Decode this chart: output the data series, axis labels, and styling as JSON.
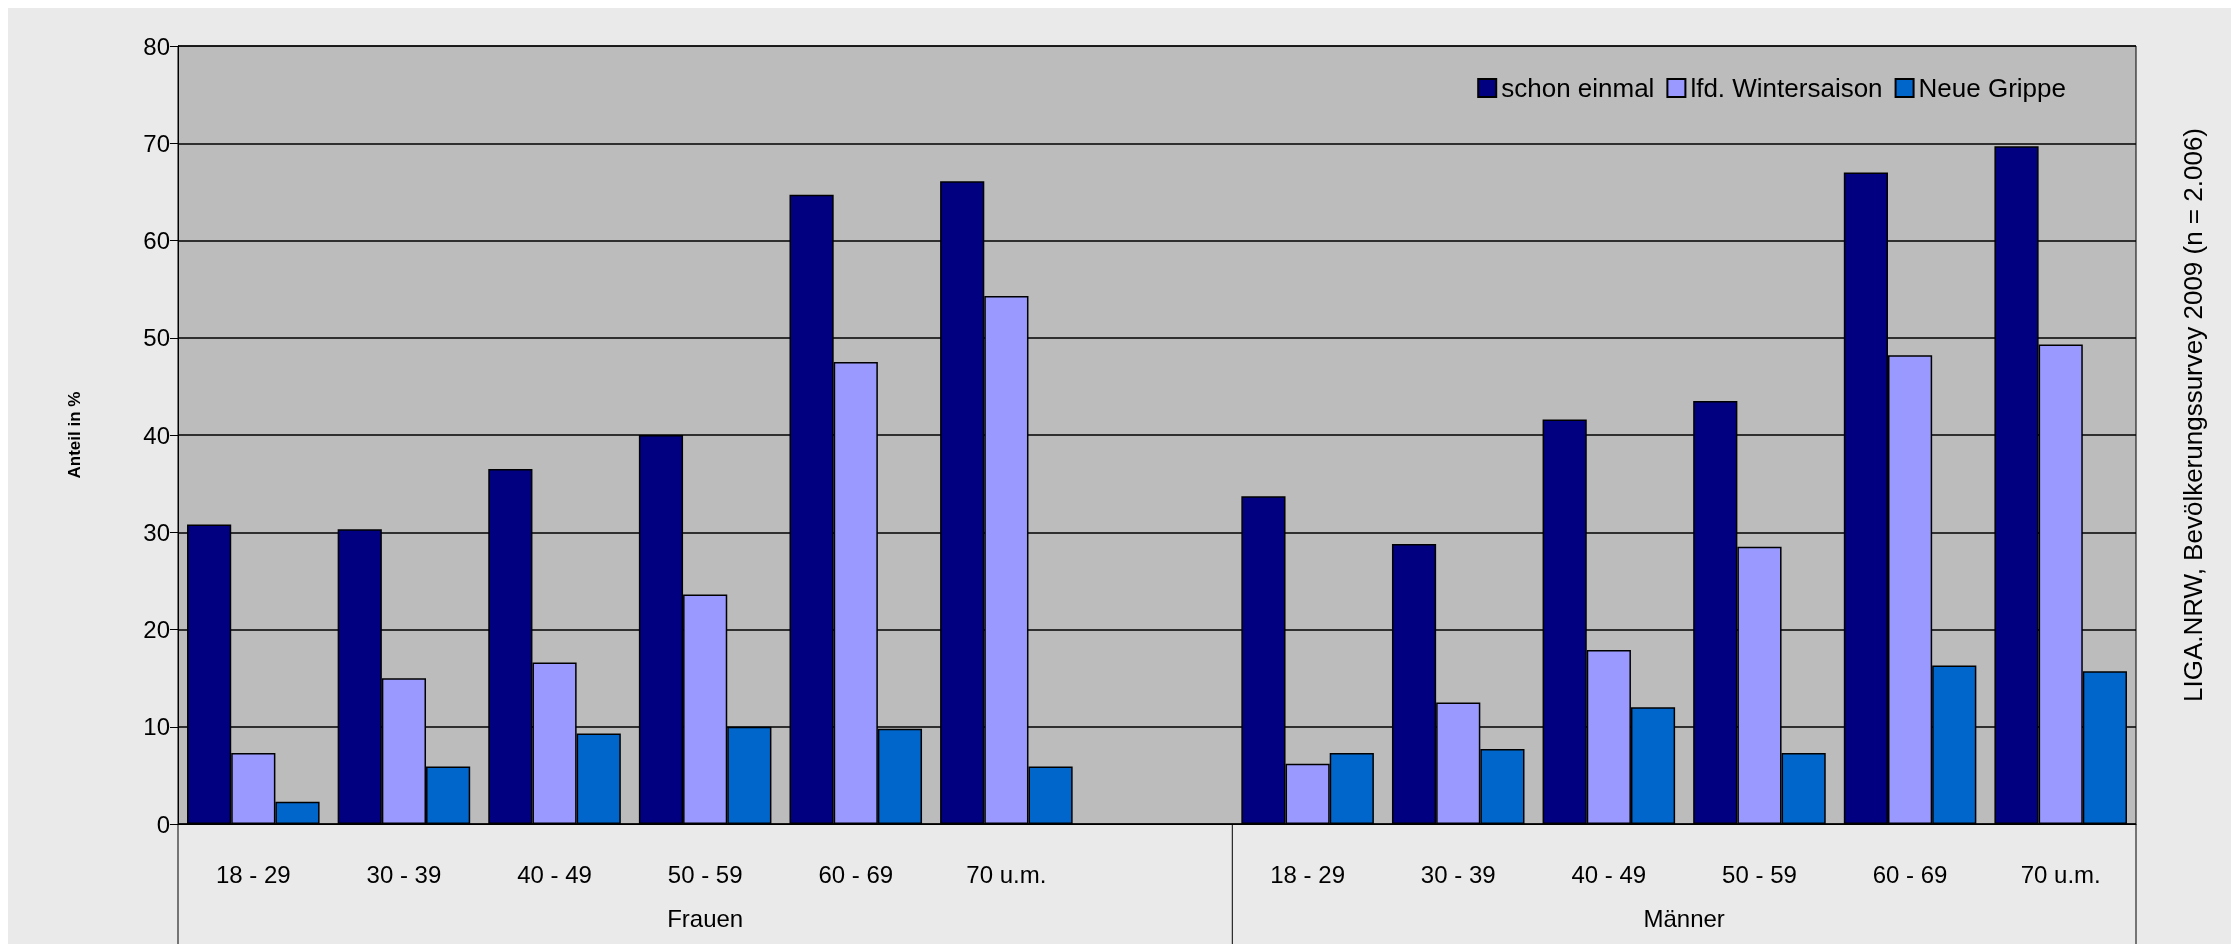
{
  "chart_data": {
    "type": "bar",
    "ylabel": "Anteil in %",
    "categories": [
      "18 - 29",
      "30 - 39",
      "40 - 49",
      "50 - 59",
      "60 - 69",
      "70 u.m.",
      null,
      "18 - 29",
      "30 - 39",
      "40 - 49",
      "50 - 59",
      "60 - 69",
      "70 u.m."
    ],
    "series": [
      {
        "name": "schon einmal",
        "color": "#000080",
        "values": [
          30.8,
          30.3,
          36.5,
          40,
          64.7,
          66.1,
          null,
          33.7,
          28.8,
          41.6,
          43.5,
          67,
          69.7
        ]
      },
      {
        "name": "lfd. Wintersaison",
        "color": "#9999ff",
        "values": [
          7.3,
          15,
          16.6,
          23.6,
          47.5,
          54.3,
          null,
          6.2,
          12.5,
          17.9,
          28.5,
          48.2,
          49.3
        ]
      },
      {
        "name": "Neue Grippe",
        "color": "#0066cc",
        "values": [
          2.3,
          5.9,
          9.3,
          10,
          9.8,
          5.9,
          null,
          7.3,
          7.7,
          12,
          7.3,
          16.3,
          15.7
        ]
      }
    ],
    "ylim": [
      0,
      80
    ],
    "yticks": [
      0,
      10,
      20,
      30,
      40,
      50,
      60,
      70,
      80
    ],
    "grid": "y",
    "legend": "top right",
    "annotations": [
      "Frauen",
      "Männer",
      "LIGA.NRW, Bevölkerungssurvey 2009 (n = 2.006)"
    ]
  }
}
